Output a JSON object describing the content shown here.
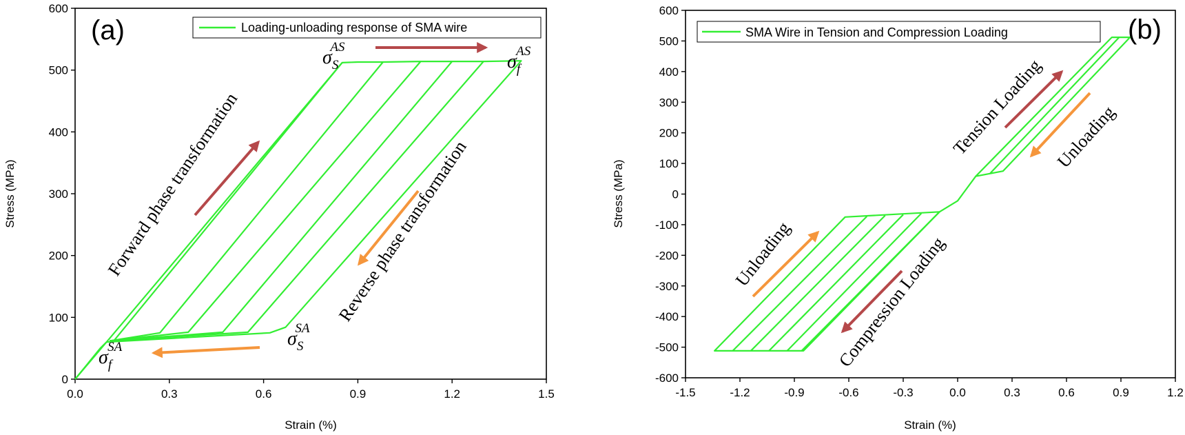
{
  "chart_data": [
    {
      "type": "line",
      "panel_label": "(a)",
      "xlabel": "Strain (%)",
      "ylabel": "Stress (MPa)",
      "xlim": [
        0,
        1.5
      ],
      "ylim": [
        0,
        600
      ],
      "xticks": [
        "0.0",
        "0.3",
        "0.6",
        "0.9",
        "1.2",
        "1.5"
      ],
      "yticks": [
        "0",
        "100",
        "200",
        "300",
        "400",
        "500",
        "600"
      ],
      "grid": false,
      "legend_position": "top-right",
      "color": "#33ee33",
      "series": [
        {
          "name": "Loading-unloading response of SMA wire"
        }
      ],
      "curves": [
        [
          [
            0,
            0
          ],
          [
            0.1,
            60
          ],
          [
            0.85,
            512
          ],
          [
            0.9,
            513
          ],
          [
            0.98,
            513
          ],
          [
            0.27,
            75
          ],
          [
            0.11,
            62
          ]
        ],
        [
          [
            0.98,
            513
          ],
          [
            1.1,
            514
          ],
          [
            0.36,
            76
          ],
          [
            0.11,
            62
          ]
        ],
        [
          [
            1.1,
            514
          ],
          [
            1.2,
            514
          ],
          [
            0.47,
            76
          ],
          [
            0.11,
            62
          ]
        ],
        [
          [
            1.2,
            514
          ],
          [
            1.3,
            514
          ],
          [
            0.55,
            76
          ],
          [
            0.11,
            62
          ]
        ],
        [
          [
            1.3,
            514
          ],
          [
            1.42,
            515
          ],
          [
            0.67,
            84
          ],
          [
            0.62,
            75
          ],
          [
            0.1,
            60
          ],
          [
            0.08,
            50
          ],
          [
            0,
            0
          ]
        ],
        [
          [
            0.12,
            60
          ],
          [
            0.85,
            512
          ]
        ]
      ],
      "annotations": {
        "forward": "Forward phase transformation",
        "reverse": "Reverse phase transformation",
        "sigma_s_as": {
          "base": "σ",
          "sub": "S",
          "sup": "AS"
        },
        "sigma_f_as": {
          "base": "σ",
          "sub": "f",
          "sup": "AS"
        },
        "sigma_s_sa": {
          "base": "σ",
          "sub": "S",
          "sup": "SA"
        },
        "sigma_f_sa": {
          "base": "σ",
          "sub": "f",
          "sup": "SA"
        }
      },
      "arrow_colors": {
        "loading": "#b5484a",
        "unloading": "#f5963c"
      }
    },
    {
      "type": "line",
      "panel_label": "(b)",
      "xlabel": "Strain (%)",
      "ylabel": "Stress (MPa)",
      "xlim": [
        -1.5,
        1.2
      ],
      "ylim": [
        -600,
        600
      ],
      "xticks": [
        "-1.5",
        "-1.2",
        "-0.9",
        "-0.6",
        "-0.3",
        "0.0",
        "0.3",
        "0.6",
        "0.9",
        "1.2"
      ],
      "yticks": [
        "-600",
        "-500",
        "-400",
        "-300",
        "-200",
        "-100",
        "0",
        "100",
        "200",
        "300",
        "400",
        "500",
        "600"
      ],
      "grid": false,
      "legend_position": "top-left",
      "color": "#33ee33",
      "series": [
        {
          "name": "SMA Wire in Tension and Compression Loading"
        }
      ],
      "curves": [
        [
          [
            -0.1,
            -58
          ],
          [
            -0.85,
            -512
          ],
          [
            -1.34,
            -512
          ],
          [
            -0.62,
            -75
          ],
          [
            -0.1,
            -58
          ]
        ],
        [
          [
            -1.24,
            -512
          ],
          [
            -0.5,
            -73
          ]
        ],
        [
          [
            -1.14,
            -512
          ],
          [
            -0.4,
            -70
          ]
        ],
        [
          [
            -1.04,
            -512
          ],
          [
            -0.3,
            -67
          ]
        ],
        [
          [
            -0.94,
            -512
          ],
          [
            -0.2,
            -63
          ]
        ],
        [
          [
            -0.86,
            -512
          ],
          [
            -0.1,
            -58
          ],
          [
            0,
            -22
          ],
          [
            0.1,
            58
          ],
          [
            0.85,
            512
          ],
          [
            0.95,
            512
          ],
          [
            0.25,
            75
          ],
          [
            0.1,
            58
          ]
        ],
        [
          [
            0.89,
            512
          ],
          [
            0.18,
            68
          ]
        ]
      ],
      "annotations": {
        "tension_loading": "Tension Loading",
        "unloading_tension": "Unloading",
        "unloading_compression": "Unloading",
        "compression_loading": "Compression Loading"
      },
      "arrow_colors": {
        "loading": "#b5484a",
        "unloading": "#f5963c"
      }
    }
  ]
}
